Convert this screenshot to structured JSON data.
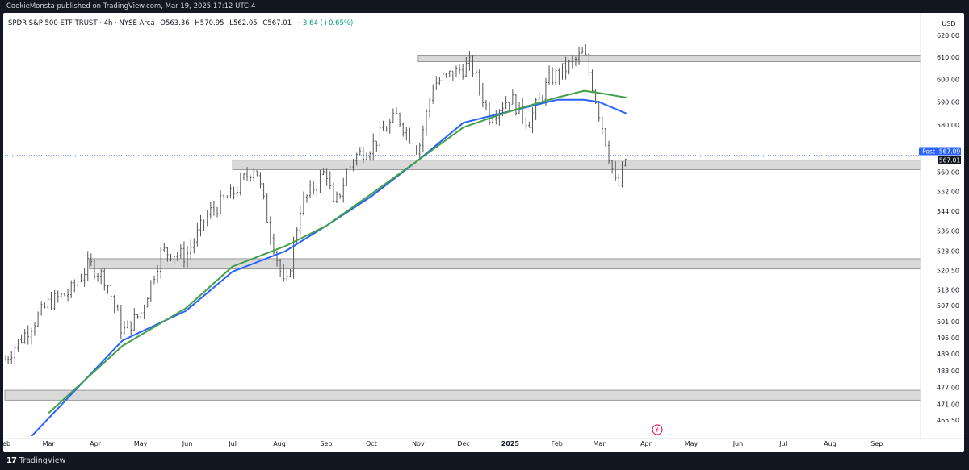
{
  "header": {
    "published_text": "CookieMonsta published on TradingView.com, Mar 19, 2025 17:12 UTC-4"
  },
  "symbol": {
    "name": "SPDR S&P 500 ETF TRUST · 4h · NYSE Arca",
    "open": "O563.36",
    "high": "H570.95",
    "low": "L562.05",
    "close": "C567.01",
    "change": "+3.64 (+0.65%)"
  },
  "footer": {
    "logo_mark": "17",
    "logo_text": "TradingView"
  },
  "colors": {
    "ma_blue": "#2962ff",
    "ma_green": "#43a047",
    "zone_fill": "#d9d9d9",
    "zone_stroke": "#888888",
    "candles": "#555555",
    "price_badge": "#131722",
    "post_badge": "#2962ff"
  },
  "chart_data": {
    "type": "line",
    "title": "SPDR S&P 500 ETF TRUST · 4h · NYSE Arca",
    "currency_label": "USD",
    "y_scale": "log",
    "ylim": [
      460,
      626
    ],
    "xlim": [
      "2024-02-01",
      "2025-09-30"
    ],
    "x_ticks": [
      {
        "label": "Feb",
        "date": "2024-02-01"
      },
      {
        "label": "Mar",
        "date": "2024-03-01"
      },
      {
        "label": "Apr",
        "date": "2024-04-01"
      },
      {
        "label": "May",
        "date": "2024-05-01"
      },
      {
        "label": "Jun",
        "date": "2024-06-01"
      },
      {
        "label": "Jul",
        "date": "2024-07-01"
      },
      {
        "label": "Aug",
        "date": "2024-08-01"
      },
      {
        "label": "Sep",
        "date": "2024-09-01"
      },
      {
        "label": "Oct",
        "date": "2024-10-01"
      },
      {
        "label": "Nov",
        "date": "2024-11-01"
      },
      {
        "label": "Dec",
        "date": "2024-12-01"
      },
      {
        "label": "2025",
        "date": "2025-01-01"
      },
      {
        "label": "Feb",
        "date": "2025-02-01"
      },
      {
        "label": "Mar",
        "date": "2025-03-01"
      },
      {
        "label": "Apr",
        "date": "2025-04-01"
      },
      {
        "label": "May",
        "date": "2025-05-01"
      },
      {
        "label": "Jun",
        "date": "2025-06-01"
      },
      {
        "label": "Jul",
        "date": "2025-07-01"
      },
      {
        "label": "Aug",
        "date": "2025-08-01"
      },
      {
        "label": "Sep",
        "date": "2025-09-01"
      }
    ],
    "y_ticks": [
      "620.00",
      "610.00",
      "600.00",
      "590.00",
      "580.00",
      "560.00",
      "552.00",
      "544.00",
      "536.00",
      "528.00",
      "520.50",
      "513.00",
      "507.00",
      "501.00",
      "495.00",
      "489.00",
      "483.00",
      "477.00",
      "471.00",
      "465.50"
    ],
    "zones": [
      {
        "from_date": "2024-11-01",
        "to_date": "2025-09-30",
        "low": 608,
        "high": 611
      },
      {
        "from_date": "2024-07-01",
        "to_date": "2025-09-30",
        "low": 561,
        "high": 565
      },
      {
        "from_date": "2024-03-28",
        "to_date": "2025-09-30",
        "low": 521,
        "high": 525
      },
      {
        "from_date": "2024-02-01",
        "to_date": "2025-09-30",
        "low": 472.5,
        "high": 476
      }
    ],
    "price_series": {
      "name": "SPY 4h close",
      "x": [
        "2024-02-01",
        "2024-02-15",
        "2024-03-01",
        "2024-03-15",
        "2024-03-28",
        "2024-04-08",
        "2024-04-19",
        "2024-05-01",
        "2024-05-15",
        "2024-05-31",
        "2024-06-15",
        "2024-07-01",
        "2024-07-16",
        "2024-07-25",
        "2024-08-05",
        "2024-08-15",
        "2024-09-01",
        "2024-09-06",
        "2024-09-19",
        "2024-10-01",
        "2024-10-18",
        "2024-11-01",
        "2024-11-11",
        "2024-12-06",
        "2024-12-18",
        "2025-01-01",
        "2025-01-13",
        "2025-01-27",
        "2025-02-07",
        "2025-02-19",
        "2025-03-01",
        "2025-03-13",
        "2025-03-19"
      ],
      "values": [
        487,
        497,
        508,
        512,
        523,
        517,
        497,
        504,
        528,
        526,
        543,
        551,
        563,
        538,
        512,
        546,
        561,
        545,
        566,
        571,
        584,
        569,
        598,
        607,
        584,
        592,
        581,
        600,
        605,
        612,
        585,
        552,
        567
      ]
    },
    "series": [
      {
        "name": "",
        "color": "#2962ff",
        "x": [
          "2024-02-15",
          "2024-04-19",
          "2024-05-31",
          "2024-07-01",
          "2024-08-05",
          "2024-09-01",
          "2024-10-01",
          "2024-11-01",
          "2024-12-01",
          "2025-01-01",
          "2025-02-01",
          "2025-02-19",
          "2025-03-01",
          "2025-03-19"
        ],
        "values": [
          458,
          494,
          505,
          520,
          528,
          538,
          550,
          565,
          581,
          586,
          591,
          591,
          590,
          585
        ]
      },
      {
        "name": "",
        "color": "#43a047",
        "x": [
          "2024-03-01",
          "2024-04-19",
          "2024-05-31",
          "2024-07-01",
          "2024-08-05",
          "2024-09-01",
          "2024-10-01",
          "2024-11-01",
          "2024-12-01",
          "2025-01-01",
          "2025-02-01",
          "2025-02-19",
          "2025-03-01",
          "2025-03-19"
        ],
        "values": [
          468,
          492,
          506,
          522,
          530,
          538,
          551,
          565,
          579,
          586,
          592,
          595,
          594,
          592
        ]
      }
    ],
    "last_price": {
      "value": 567.01,
      "label": "567.01"
    },
    "post_price": {
      "value": 567.09,
      "label": "567.09",
      "tag": "Post"
    },
    "grid": false,
    "legend": "none"
  }
}
